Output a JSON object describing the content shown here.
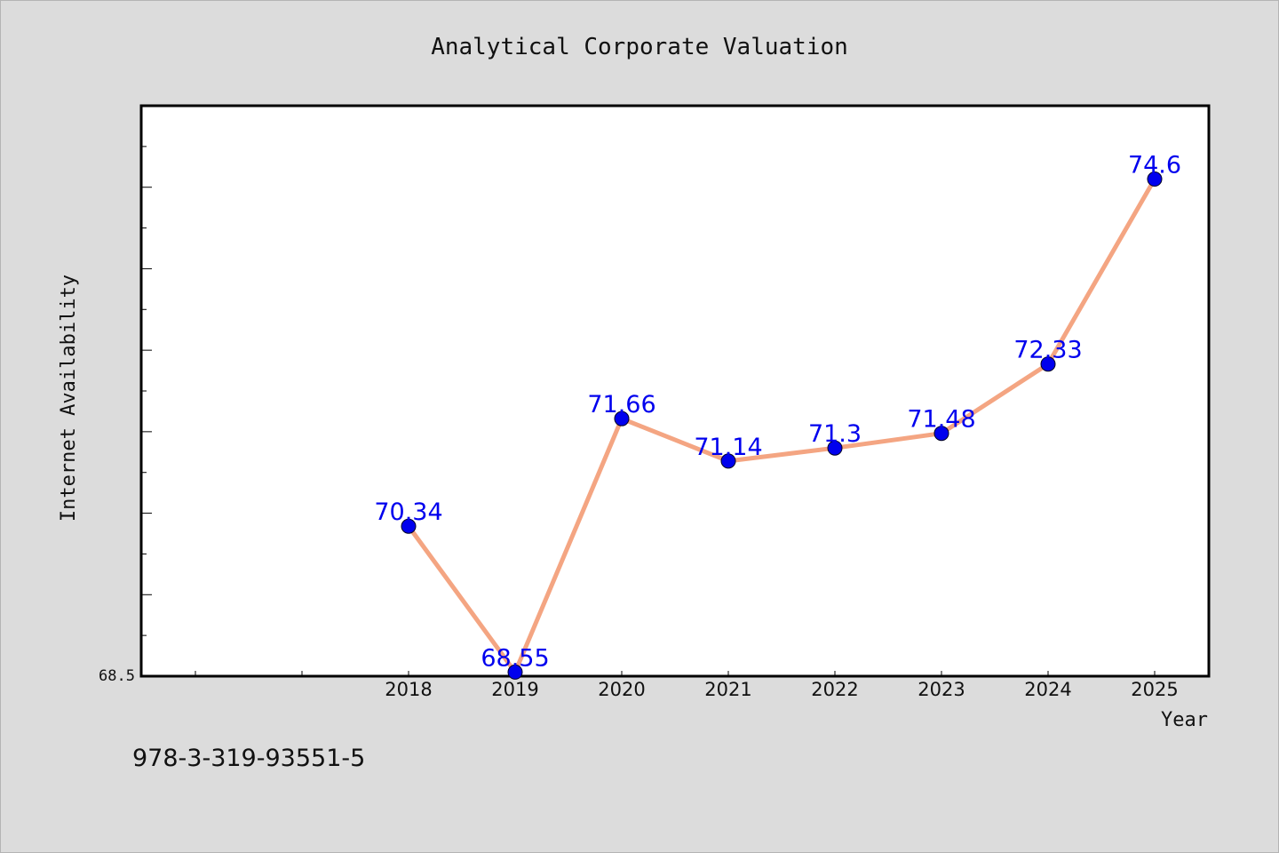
{
  "chart_data": {
    "type": "line",
    "title": "Analytical Corporate Valuation",
    "xlabel": "Year",
    "ylabel": "Internet Availability",
    "x": [
      "2018",
      "2019",
      "2020",
      "2021",
      "2022",
      "2023",
      "2024",
      "2025"
    ],
    "series": [
      {
        "values": [
          70.34,
          68.55,
          71.66,
          71.14,
          71.3,
          71.48,
          72.33,
          74.6
        ],
        "data_labels": [
          "70.34",
          "68.55",
          "71.66",
          "71.14",
          "71.3",
          "71.48",
          "72.33",
          "74.6"
        ],
        "line_color": "#f4a582",
        "marker_color": "#0000ee"
      }
    ],
    "ylim": [
      68.5,
      75.5
    ],
    "y_tick_label": "68.5",
    "grid": false,
    "legend": "none",
    "label_color": "#0000ee"
  },
  "footer": {
    "isbn": "978-3-319-93551-5"
  }
}
